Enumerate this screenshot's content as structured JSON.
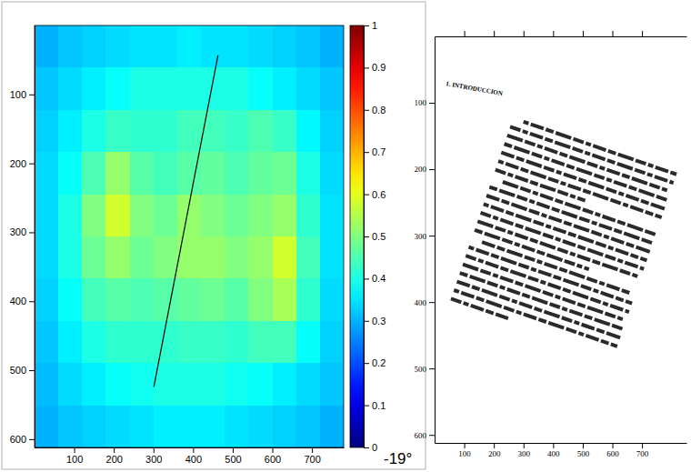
{
  "chart_data": [
    {
      "type": "heatmap",
      "x": [
        30,
        90,
        150,
        210,
        270,
        330,
        390,
        450,
        510,
        570,
        630,
        690,
        750
      ],
      "y": [
        30.6,
        91.8,
        153,
        214.2,
        275.4,
        336.6,
        397.8,
        459,
        520.2,
        581.4
      ],
      "cells": [
        [
          0.3,
          0.32,
          0.33,
          0.34,
          0.35,
          0.35,
          0.36,
          0.35,
          0.35,
          0.34,
          0.33,
          0.32,
          0.3
        ],
        [
          0.32,
          0.34,
          0.36,
          0.38,
          0.4,
          0.4,
          0.4,
          0.4,
          0.4,
          0.38,
          0.36,
          0.34,
          0.32
        ],
        [
          0.33,
          0.36,
          0.4,
          0.43,
          0.42,
          0.42,
          0.44,
          0.44,
          0.43,
          0.45,
          0.43,
          0.37,
          0.33
        ],
        [
          0.34,
          0.38,
          0.45,
          0.52,
          0.46,
          0.44,
          0.46,
          0.47,
          0.45,
          0.47,
          0.48,
          0.4,
          0.34
        ],
        [
          0.34,
          0.4,
          0.5,
          0.58,
          0.5,
          0.48,
          0.52,
          0.5,
          0.48,
          0.5,
          0.52,
          0.42,
          0.35
        ],
        [
          0.34,
          0.4,
          0.48,
          0.52,
          0.48,
          0.5,
          0.52,
          0.52,
          0.5,
          0.52,
          0.58,
          0.44,
          0.35
        ],
        [
          0.33,
          0.38,
          0.44,
          0.46,
          0.45,
          0.46,
          0.47,
          0.48,
          0.46,
          0.5,
          0.54,
          0.42,
          0.34
        ],
        [
          0.32,
          0.36,
          0.4,
          0.42,
          0.42,
          0.42,
          0.43,
          0.43,
          0.42,
          0.44,
          0.44,
          0.38,
          0.33
        ],
        [
          0.31,
          0.34,
          0.36,
          0.38,
          0.39,
          0.4,
          0.4,
          0.4,
          0.39,
          0.38,
          0.36,
          0.34,
          0.32
        ],
        [
          0.3,
          0.32,
          0.33,
          0.34,
          0.35,
          0.36,
          0.36,
          0.36,
          0.35,
          0.34,
          0.33,
          0.32,
          0.3
        ]
      ],
      "xlim": [
        0,
        780
      ],
      "ylim": [
        0,
        612
      ],
      "xticks": [
        100,
        200,
        300,
        400,
        500,
        600,
        700
      ],
      "yticks": [
        100,
        200,
        300,
        400,
        500,
        600
      ],
      "colorbar": {
        "range": [
          0,
          1
        ],
        "ticks": [
          0,
          0.1,
          0.2,
          0.3,
          0.4,
          0.5,
          0.6,
          0.7,
          0.8,
          0.9,
          1
        ]
      },
      "line": {
        "x": [
          463,
          301
        ],
        "y": [
          43,
          524
        ]
      },
      "color": "#000000"
    },
    {
      "type": "image",
      "xlim": [
        0,
        850
      ],
      "ylim": [
        0,
        612
      ],
      "xticks": [
        100,
        200,
        300,
        400,
        500,
        600,
        700
      ],
      "yticks": [
        100,
        200,
        300,
        400,
        500,
        600
      ],
      "heading": "1. INTRODUCCION",
      "annotation": "-19°"
    }
  ]
}
